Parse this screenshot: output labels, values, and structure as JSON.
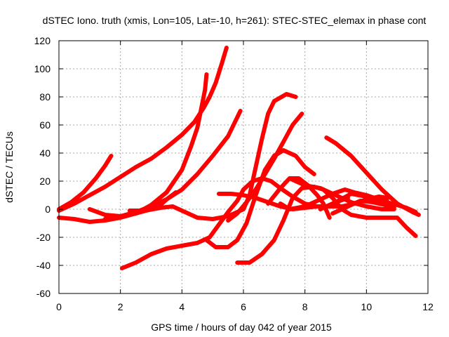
{
  "chart_data": {
    "type": "line",
    "title": "dSTEC Iono. truth (xmis, Lon=105, Lat=-10, h=261): STEC-STEC_elemax in phase cont",
    "xlabel": "GPS time / hours of day 042 of year 2015",
    "ylabel": "dSTEC  / TECUs",
    "xlim": [
      0,
      12
    ],
    "ylim": [
      -60,
      120
    ],
    "xticks": [
      0,
      2,
      4,
      6,
      8,
      10,
      12
    ],
    "yticks": [
      -60,
      -40,
      -20,
      0,
      20,
      40,
      60,
      80,
      100,
      120
    ],
    "grid": true,
    "legend": "none",
    "series_color": "#ff0000",
    "series": [
      {
        "values": [
          [
            0.0,
            0
          ],
          [
            0.4,
            5
          ],
          [
            0.8,
            12
          ],
          [
            1.2,
            22
          ],
          [
            1.5,
            31
          ],
          [
            1.7,
            38
          ]
        ]
      },
      {
        "values": [
          [
            0.0,
            -1
          ],
          [
            0.5,
            4
          ],
          [
            1.0,
            10
          ],
          [
            1.5,
            16
          ],
          [
            2.0,
            23
          ],
          [
            2.5,
            30
          ],
          [
            3.0,
            36
          ],
          [
            3.5,
            44
          ],
          [
            4.0,
            53
          ],
          [
            4.4,
            62
          ],
          [
            4.7,
            72
          ],
          [
            4.9,
            80
          ],
          [
            5.1,
            90
          ],
          [
            5.3,
            104
          ],
          [
            5.45,
            115
          ]
        ]
      },
      {
        "values": [
          [
            0.0,
            -6
          ],
          [
            0.5,
            -7
          ],
          [
            1.0,
            -9
          ],
          [
            1.5,
            -8
          ],
          [
            2.0,
            -6
          ],
          [
            2.5,
            -3
          ],
          [
            3.0,
            3
          ],
          [
            3.5,
            12
          ],
          [
            4.0,
            28
          ],
          [
            4.3,
            45
          ],
          [
            4.5,
            58
          ],
          [
            4.65,
            74
          ],
          [
            4.75,
            85
          ],
          [
            4.8,
            96
          ]
        ]
      },
      {
        "values": [
          [
            1.0,
            0
          ],
          [
            1.5,
            -4
          ],
          [
            2.0,
            -5
          ],
          [
            2.5,
            -3
          ],
          [
            3.0,
            0
          ],
          [
            3.3,
            3
          ],
          [
            3.5,
            7
          ],
          [
            3.8,
            12
          ]
        ]
      },
      {
        "values": [
          [
            1.5,
            -7
          ],
          [
            2.0,
            -5
          ],
          [
            2.5,
            -2
          ],
          [
            3.0,
            2
          ],
          [
            3.5,
            7
          ],
          [
            4.0,
            14
          ],
          [
            4.5,
            25
          ],
          [
            5.0,
            38
          ],
          [
            5.5,
            52
          ],
          [
            5.9,
            70
          ]
        ]
      },
      {
        "values": [
          [
            2.3,
            -1
          ],
          [
            2.8,
            -1
          ],
          [
            3.3,
            1
          ],
          [
            3.7,
            2
          ],
          [
            4.1,
            -2
          ],
          [
            4.5,
            -6
          ],
          [
            5.0,
            -7
          ],
          [
            5.5,
            -5
          ],
          [
            6.0,
            0
          ],
          [
            6.2,
            10
          ],
          [
            6.4,
            30
          ],
          [
            6.6,
            50
          ],
          [
            6.8,
            68
          ],
          [
            7.0,
            77
          ],
          [
            7.4,
            82
          ],
          [
            7.7,
            80
          ]
        ]
      },
      {
        "values": [
          [
            2.05,
            -42
          ],
          [
            2.5,
            -38
          ],
          [
            3.0,
            -32
          ],
          [
            3.5,
            -28
          ],
          [
            4.0,
            -26
          ],
          [
            4.5,
            -24
          ],
          [
            4.9,
            -20
          ],
          [
            5.2,
            -11
          ],
          [
            5.5,
            -2
          ],
          [
            5.8,
            6
          ],
          [
            6.0,
            14
          ],
          [
            6.3,
            20
          ],
          [
            6.6,
            22
          ],
          [
            6.9,
            20
          ],
          [
            7.2,
            15
          ],
          [
            7.6,
            9
          ],
          [
            8.0,
            4
          ],
          [
            8.4,
            2
          ],
          [
            8.7,
            2
          ],
          [
            9.0,
            5
          ],
          [
            9.4,
            8
          ]
        ]
      },
      {
        "values": [
          [
            4.8,
            -22
          ],
          [
            5.1,
            -27
          ],
          [
            5.5,
            -27
          ],
          [
            5.8,
            -22
          ],
          [
            6.1,
            -10
          ],
          [
            6.4,
            10
          ],
          [
            6.7,
            28
          ],
          [
            7.0,
            38
          ],
          [
            7.3,
            42
          ],
          [
            7.7,
            38
          ],
          [
            8.0,
            30
          ],
          [
            8.3,
            25
          ]
        ]
      },
      {
        "values": [
          [
            5.2,
            11
          ],
          [
            5.6,
            11
          ],
          [
            6.0,
            10
          ],
          [
            6.4,
            8
          ],
          [
            6.8,
            5
          ],
          [
            7.2,
            2
          ],
          [
            7.6,
            0
          ],
          [
            8.0,
            1
          ],
          [
            8.4,
            2
          ],
          [
            8.8,
            2
          ],
          [
            9.2,
            2
          ],
          [
            9.6,
            4
          ],
          [
            10.0,
            7
          ],
          [
            10.4,
            9
          ],
          [
            10.7,
            8
          ]
        ]
      },
      {
        "values": [
          [
            5.8,
            -38
          ],
          [
            6.2,
            -38
          ],
          [
            6.6,
            -32
          ],
          [
            7.0,
            -22
          ],
          [
            7.3,
            -8
          ],
          [
            7.6,
            8
          ],
          [
            7.9,
            15
          ],
          [
            8.3,
            16
          ],
          [
            8.6,
            14
          ],
          [
            8.9,
            8
          ],
          [
            9.2,
            0
          ],
          [
            9.5,
            -4
          ],
          [
            10.0,
            -6
          ],
          [
            10.5,
            -6
          ],
          [
            11.0,
            -6
          ],
          [
            11.3,
            -13
          ],
          [
            11.6,
            -19
          ]
        ]
      },
      {
        "values": [
          [
            6.8,
            4
          ],
          [
            7.2,
            15
          ],
          [
            7.5,
            22
          ],
          [
            7.8,
            22
          ],
          [
            8.1,
            17
          ],
          [
            8.4,
            10
          ],
          [
            8.6,
            4
          ],
          [
            8.8,
            -6
          ]
        ]
      },
      {
        "values": [
          [
            7.5,
            22
          ],
          [
            8.0,
            17
          ],
          [
            8.5,
            15
          ],
          [
            9.0,
            10
          ],
          [
            9.5,
            5
          ],
          [
            10.0,
            2
          ],
          [
            10.5,
            0
          ],
          [
            10.9,
            0
          ]
        ]
      },
      {
        "values": [
          [
            7.2,
            4
          ],
          [
            7.5,
            0
          ],
          [
            8.0,
            2
          ],
          [
            8.5,
            7
          ],
          [
            8.9,
            11
          ],
          [
            9.3,
            14
          ],
          [
            9.6,
            12
          ],
          [
            10.0,
            10
          ],
          [
            10.4,
            7
          ],
          [
            10.7,
            5
          ]
        ]
      },
      {
        "values": [
          [
            8.5,
            0
          ],
          [
            9.0,
            5
          ],
          [
            9.5,
            11
          ],
          [
            10.0,
            9
          ],
          [
            10.5,
            6
          ],
          [
            11.0,
            3
          ],
          [
            11.3,
            1
          ],
          [
            11.6,
            -2
          ]
        ]
      },
      {
        "values": [
          [
            8.7,
            51
          ],
          [
            9.0,
            47
          ],
          [
            9.5,
            38
          ],
          [
            10.0,
            26
          ],
          [
            10.5,
            14
          ],
          [
            11.0,
            4
          ],
          [
            11.5,
            -2
          ],
          [
            11.7,
            -4
          ]
        ]
      },
      {
        "values": [
          [
            8.9,
            -3
          ],
          [
            9.4,
            2
          ],
          [
            9.8,
            6
          ],
          [
            10.2,
            5
          ],
          [
            10.6,
            3
          ],
          [
            10.9,
            1
          ]
        ]
      },
      {
        "values": [
          [
            7.9,
            68
          ],
          [
            7.6,
            60
          ],
          [
            7.3,
            48
          ],
          [
            7.0,
            36
          ],
          [
            6.7,
            25
          ],
          [
            6.4,
            14
          ],
          [
            6.1,
            5
          ],
          [
            5.8,
            -3
          ],
          [
            5.5,
            -8
          ]
        ]
      }
    ]
  }
}
